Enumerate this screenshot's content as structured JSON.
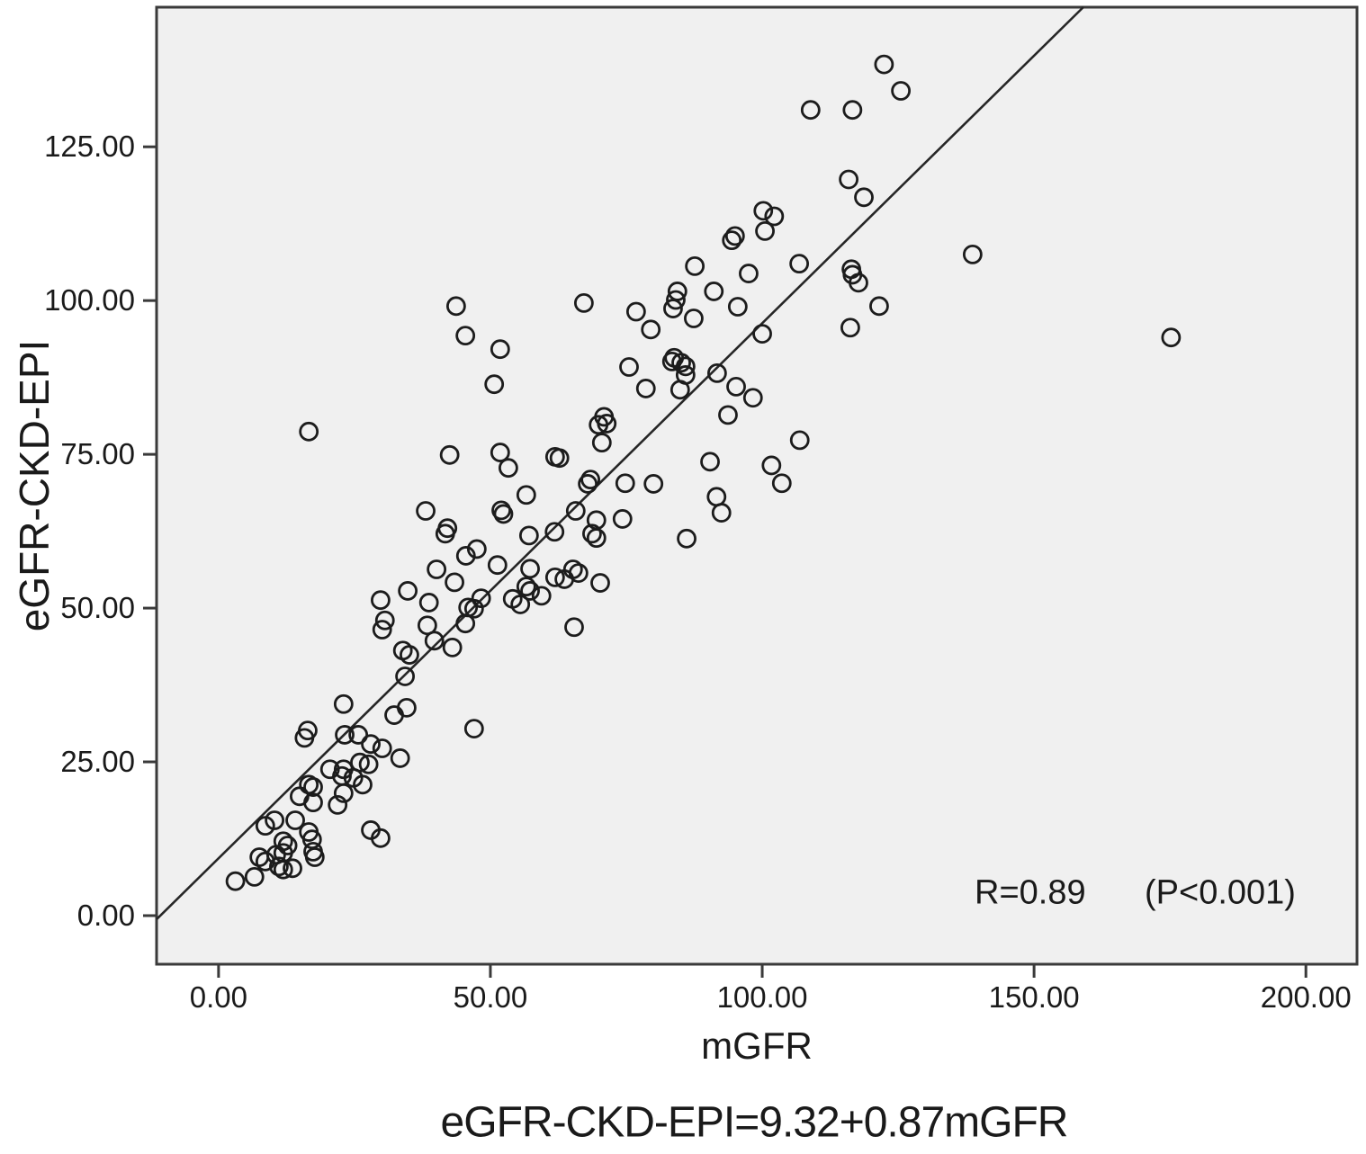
{
  "figure": {
    "background": "#ffffff",
    "plot_background": "#f0f0f0",
    "frame_color": "#3a3a3a",
    "tick_color": "#3a3a3a",
    "point_color": "#1c1c1c",
    "line_color": "#262626",
    "text_color": "#1a1a1a"
  },
  "annotations": {
    "r_value": "R=0.89",
    "p_value": "(P<0.001)"
  },
  "chart_data": {
    "type": "scatter",
    "title": "",
    "xlabel": "mGFR",
    "ylabel": "eGFR-CKD-EPI",
    "caption": "eGFR-CKD-EPI=9.32+0.87mGFR",
    "xlim": [
      -11.4,
      209.4
    ],
    "ylim": [
      -7.9,
      147.7
    ],
    "grid": false,
    "x_ticks": [
      0,
      50,
      100,
      150,
      200
    ],
    "x_tick_labels": [
      "0.00",
      "50.00",
      "100.00",
      "150.00",
      "200.00"
    ],
    "y_ticks": [
      0,
      25,
      50,
      75,
      100,
      125
    ],
    "y_tick_labels": [
      "0.00",
      "25.00",
      "50.00",
      "75.00",
      "100.00",
      "125.00"
    ],
    "regression_line": {
      "intercept": 9.32,
      "slope": 0.87,
      "r": 0.89,
      "p": "<0.001"
    },
    "points": [
      [
        3.1,
        5.6
      ],
      [
        6.6,
        6.3
      ],
      [
        7.5,
        9.5
      ],
      [
        8.6,
        8.8
      ],
      [
        8.6,
        14.6
      ],
      [
        10.3,
        15.5
      ],
      [
        10.6,
        9.9
      ],
      [
        11.1,
        8.0
      ],
      [
        11.9,
        7.5
      ],
      [
        11.9,
        10.2
      ],
      [
        11.9,
        12.1
      ],
      [
        12.7,
        11.4
      ],
      [
        13.6,
        7.7
      ],
      [
        14.1,
        15.5
      ],
      [
        14.9,
        19.4
      ],
      [
        16.6,
        13.6
      ],
      [
        16.6,
        21.3
      ],
      [
        17.2,
        12.4
      ],
      [
        17.4,
        10.4
      ],
      [
        17.4,
        18.4
      ],
      [
        17.4,
        20.9
      ],
      [
        17.7,
        9.5
      ],
      [
        20.5,
        23.8
      ],
      [
        21.9,
        18.0
      ],
      [
        22.7,
        22.7
      ],
      [
        23.0,
        19.9
      ],
      [
        23.0,
        23.8
      ],
      [
        24.8,
        22.4
      ],
      [
        26.0,
        24.9
      ],
      [
        26.5,
        21.3
      ],
      [
        27.6,
        24.6
      ],
      [
        28.0,
        13.9
      ],
      [
        28.0,
        27.9
      ],
      [
        29.8,
        12.6
      ],
      [
        30.1,
        27.2
      ],
      [
        33.4,
        25.6
      ],
      [
        15.8,
        28.9
      ],
      [
        16.4,
        30.1
      ],
      [
        23.0,
        34.4
      ],
      [
        23.2,
        29.4
      ],
      [
        25.7,
        29.4
      ],
      [
        29.8,
        51.3
      ],
      [
        30.1,
        46.5
      ],
      [
        30.6,
        48.0
      ],
      [
        32.3,
        32.6
      ],
      [
        33.9,
        43.1
      ],
      [
        34.3,
        38.9
      ],
      [
        34.6,
        33.8
      ],
      [
        34.8,
        52.8
      ],
      [
        35.1,
        42.4
      ],
      [
        38.4,
        47.2
      ],
      [
        38.7,
        50.9
      ],
      [
        39.7,
        44.7
      ],
      [
        40.1,
        56.3
      ],
      [
        41.7,
        62.1
      ],
      [
        43.0,
        43.6
      ],
      [
        43.4,
        54.2
      ],
      [
        45.4,
        47.5
      ],
      [
        45.5,
        58.5
      ],
      [
        45.9,
        50.1
      ],
      [
        47.0,
        30.4
      ],
      [
        47.0,
        49.9
      ],
      [
        47.5,
        59.6
      ],
      [
        48.3,
        51.6
      ],
      [
        16.6,
        78.7
      ],
      [
        38.1,
        65.8
      ],
      [
        42.1,
        63.0
      ],
      [
        42.5,
        74.9
      ],
      [
        43.7,
        99.1
      ],
      [
        45.4,
        94.3
      ],
      [
        50.7,
        86.4
      ],
      [
        51.8,
        75.3
      ],
      [
        51.8,
        92.1
      ],
      [
        52.0,
        65.9
      ],
      [
        52.4,
        65.3
      ],
      [
        53.3,
        72.8
      ],
      [
        56.6,
        68.4
      ],
      [
        61.9,
        74.6
      ],
      [
        51.3,
        57.0
      ],
      [
        54.1,
        51.5
      ],
      [
        55.5,
        50.6
      ],
      [
        56.6,
        53.5
      ],
      [
        57.1,
        61.8
      ],
      [
        57.3,
        52.8
      ],
      [
        57.3,
        56.4
      ],
      [
        59.4,
        52.0
      ],
      [
        61.8,
        62.4
      ],
      [
        61.9,
        55.0
      ],
      [
        63.6,
        54.7
      ],
      [
        65.2,
        56.3
      ],
      [
        65.4,
        46.9
      ],
      [
        65.7,
        65.8
      ],
      [
        66.2,
        55.7
      ],
      [
        68.7,
        62.1
      ],
      [
        69.5,
        61.4
      ],
      [
        70.2,
        54.1
      ],
      [
        62.7,
        74.4
      ],
      [
        67.9,
        70.2
      ],
      [
        68.4,
        70.9
      ],
      [
        69.5,
        64.3
      ],
      [
        69.9,
        79.8
      ],
      [
        70.5,
        76.9
      ],
      [
        70.9,
        81.1
      ],
      [
        71.4,
        80.0
      ],
      [
        74.3,
        64.5
      ],
      [
        74.8,
        70.3
      ],
      [
        75.5,
        89.2
      ],
      [
        78.6,
        85.7
      ],
      [
        80.0,
        70.2
      ],
      [
        83.4,
        90.1
      ],
      [
        84.9,
        85.5
      ],
      [
        85.1,
        89.9
      ],
      [
        85.9,
        87.9
      ],
      [
        86.1,
        61.3
      ],
      [
        90.4,
        73.8
      ],
      [
        91.6,
        68.1
      ],
      [
        91.7,
        88.2
      ],
      [
        92.5,
        65.5
      ],
      [
        93.7,
        81.4
      ],
      [
        95.2,
        86.0
      ],
      [
        98.3,
        84.2
      ],
      [
        101.7,
        73.2
      ],
      [
        103.6,
        70.3
      ],
      [
        106.9,
        77.3
      ],
      [
        67.2,
        99.6
      ],
      [
        76.8,
        98.2
      ],
      [
        79.5,
        95.3
      ],
      [
        83.6,
        98.7
      ],
      [
        83.8,
        90.7
      ],
      [
        84.1,
        100.1
      ],
      [
        84.4,
        101.5
      ],
      [
        85.9,
        89.3
      ],
      [
        87.4,
        97.1
      ],
      [
        87.6,
        105.6
      ],
      [
        91.1,
        101.5
      ],
      [
        94.4,
        109.8
      ],
      [
        95.0,
        110.5
      ],
      [
        95.5,
        99.0
      ],
      [
        97.5,
        104.4
      ],
      [
        100.0,
        94.6
      ],
      [
        100.2,
        114.6
      ],
      [
        100.5,
        111.3
      ],
      [
        102.2,
        113.7
      ],
      [
        106.8,
        106.0
      ],
      [
        115.9,
        119.7
      ],
      [
        116.2,
        95.6
      ],
      [
        116.4,
        105.1
      ],
      [
        116.6,
        104.2
      ],
      [
        117.7,
        102.9
      ],
      [
        118.7,
        116.8
      ],
      [
        121.5,
        99.1
      ],
      [
        108.9,
        131.0
      ],
      [
        116.6,
        131.0
      ],
      [
        122.4,
        138.4
      ],
      [
        125.5,
        134.1
      ],
      [
        138.7,
        107.5
      ],
      [
        175.2,
        94.0
      ]
    ]
  }
}
